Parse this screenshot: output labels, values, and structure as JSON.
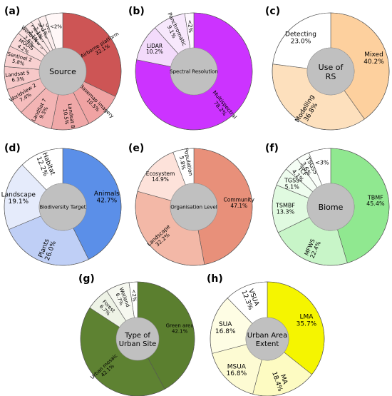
{
  "chart_data": [
    {
      "type": "pie",
      "panel": "(a)",
      "center_label": "Source",
      "slices": [
        {
          "label": "Airborne platform",
          "value_label": "32.1%",
          "value": 32.1,
          "color": "#cd5555"
        },
        {
          "label": "Basemap imagery",
          "value_label": "10.5%",
          "value": 10.5,
          "color": "#f0a3a3"
        },
        {
          "label": "Landsat 8",
          "value_label": "10.5%",
          "value": 10.5,
          "color": "#f0a8a8"
        },
        {
          "label": "LandSat 7",
          "value_label": "9.5%",
          "value": 9.5,
          "color": "#f3b4b4"
        },
        {
          "label": "Worldview 2",
          "value_label": "7.4%",
          "value": 7.4,
          "color": "#f5bdbd"
        },
        {
          "label": "Landsat 5",
          "value_label": "6.3%",
          "value": 6.3,
          "color": "#f7c8c8"
        },
        {
          "label": "Sentinel 2",
          "value_label": "5.8%",
          "value": 5.8,
          "color": "#f8d0d0"
        },
        {
          "label": "MODIS",
          "value_label": "4.2%",
          "value": 4.2,
          "color": "#fadada"
        },
        {
          "label": "Worldview 3",
          "value_label": "2.6%",
          "value": 2.6,
          "color": "#fbe0e0"
        },
        {
          "label": "Pleiades",
          "value_label": "2.1%",
          "value": 2.1,
          "color": "#fce6e6"
        },
        {
          "label": "SPOT 5",
          "value_label": "2.1%",
          "value": 2.1,
          "color": "#fdeaea"
        },
        {
          "label": "GE2",
          "value_label": "2.1%",
          "value": 2.1,
          "color": "#fdeeee"
        },
        {
          "label": "<2%",
          "value_label": "",
          "value": 4.8,
          "color": "#fff7f7"
        }
      ]
    },
    {
      "type": "pie",
      "panel": "(b)",
      "center_label": "Spectral Resolution",
      "slices": [
        {
          "label": "Multispectral",
          "value_label": "78.2%",
          "value": 78.2,
          "color": "#cc33ff"
        },
        {
          "label": "LiDAR",
          "value_label": "10.2%",
          "value": 10.2,
          "color": "#f3dbfb"
        },
        {
          "label": "Panchromatic",
          "value_label": "9.1%",
          "value": 9.1,
          "color": "#f7e8fc"
        },
        {
          "label": "<2%",
          "value_label": "",
          "value": 2.5,
          "color": "#fdf7fe"
        }
      ]
    },
    {
      "type": "pie",
      "panel": "(c)",
      "center_label": "Use of RS",
      "slices": [
        {
          "label": "Mixed",
          "value_label": "40.2%",
          "value": 40.2,
          "color": "#fdd09e"
        },
        {
          "label": "Modelling",
          "value_label": "36.8%",
          "value": 36.8,
          "color": "#fde0bd"
        },
        {
          "label": "Detecting",
          "value_label": "23.0%",
          "value": 23.0,
          "color": "#ffffff"
        }
      ]
    },
    {
      "type": "pie",
      "panel": "(d)",
      "center_label": "Biodiversity Target",
      "slices": [
        {
          "label": "Animals",
          "value_label": "42.7%",
          "value": 42.7,
          "color": "#5b8fe8"
        },
        {
          "label": "Plants",
          "value_label": "26.0%",
          "value": 26.0,
          "color": "#bfcff6"
        },
        {
          "label": "Landscape",
          "value_label": "19.1%",
          "value": 19.1,
          "color": "#e5ebfb"
        },
        {
          "label": "Habitat",
          "value_label": "12.2%",
          "value": 12.2,
          "color": "#ffffff"
        }
      ]
    },
    {
      "type": "pie",
      "panel": "(e)",
      "center_label": "Organisation Level",
      "slices": [
        {
          "label": "Community",
          "value_label": "47.1%",
          "value": 47.1,
          "color": "#e8907a"
        },
        {
          "label": "Landscape",
          "value_label": "32.2%",
          "value": 32.2,
          "color": "#f3b8a7"
        },
        {
          "label": "Ecosystem",
          "value_label": "14.9%",
          "value": 14.9,
          "color": "#fde2da"
        },
        {
          "label": "Population",
          "value_label": "5.8%",
          "value": 5.8,
          "color": "#ffffff"
        }
      ]
    },
    {
      "type": "pie",
      "panel": "(f)",
      "center_label": "Biome",
      "slices": [
        {
          "label": "TBMF",
          "value_label": "45.4%",
          "value": 45.4,
          "color": "#90e890"
        },
        {
          "label": "MFWS",
          "value_label": "22.4%",
          "value": 22.4,
          "color": "#c8f5c8"
        },
        {
          "label": "TSMBF",
          "value_label": "13.3%",
          "value": 13.3,
          "color": "#e0fae0"
        },
        {
          "label": "TGSS",
          "value_label": "5.1%",
          "value": 5.1,
          "color": "#eefcee"
        },
        {
          "label": "TCF",
          "value_label": "4.1%",
          "value": 4.1,
          "color": "#f5fdf5"
        },
        {
          "label": "TSGSS",
          "value_label": "3.6%",
          "value": 3.6,
          "color": "#fafefa"
        },
        {
          "label": "<3%",
          "value_label": "",
          "value": 6.1,
          "color": "#ffffff"
        }
      ]
    },
    {
      "type": "pie",
      "panel": "(g)",
      "center_label": "Type of Urban Site",
      "slices": [
        {
          "label": "Green area",
          "value_label": "42.1%",
          "value": 42.1,
          "color": "#5b7f2f"
        },
        {
          "label": "Urban mosaic",
          "value_label": "42.1%",
          "value": 42.1,
          "color": "#5e8232"
        },
        {
          "label": "Forest",
          "value_label": "6.7%",
          "value": 6.7,
          "color": "#eef3e6"
        },
        {
          "label": "Wetland",
          "value_label": "6.7%",
          "value": 6.7,
          "color": "#f6f8f0"
        },
        {
          "label": "<2%",
          "value_label": "",
          "value": 2.4,
          "color": "#ffffff"
        }
      ]
    },
    {
      "type": "pie",
      "panel": "(h)",
      "center_label": "Urban Area Extent",
      "slices": [
        {
          "label": "LMA",
          "value_label": "35.7%",
          "value": 35.7,
          "color": "#f5f500"
        },
        {
          "label": "MA",
          "value_label": "18.4%",
          "value": 18.4,
          "color": "#fdfbc2"
        },
        {
          "label": "MSUA",
          "value_label": "16.8%",
          "value": 16.8,
          "color": "#fdfbd3"
        },
        {
          "label": "SUA",
          "value_label": "16.8%",
          "value": 16.8,
          "color": "#fefde4"
        },
        {
          "label": "VSUA",
          "value_label": "12.3%",
          "value": 12.3,
          "color": "#ffffff"
        }
      ]
    }
  ]
}
